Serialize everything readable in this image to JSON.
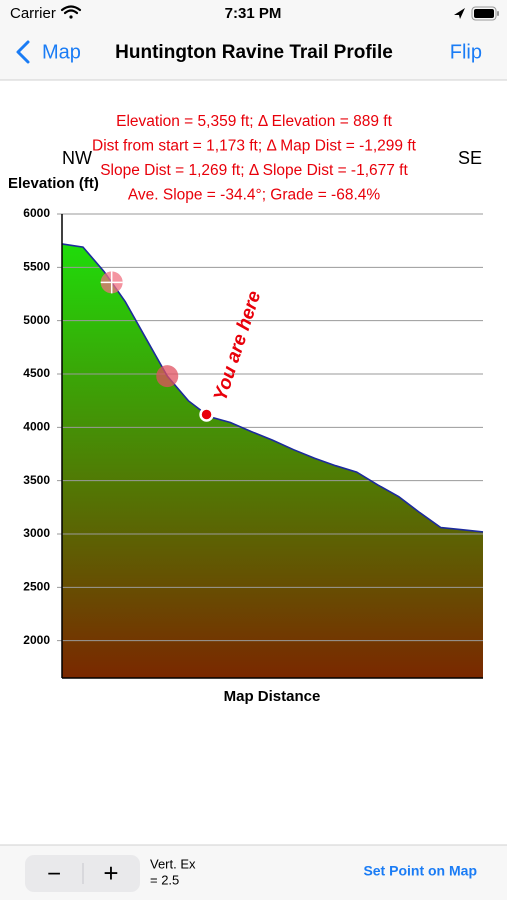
{
  "status_bar": {
    "carrier": "Carrier",
    "time": "7:31 PM"
  },
  "nav_bar": {
    "back": "Map",
    "title": "Huntington Ravine Trail Profile",
    "action": "Flip"
  },
  "chart_data": {
    "type": "area",
    "info_lines": [
      "Elevation = 5,359 ft;   Δ Elevation = 889 ft",
      "Dist from start = 1,173 ft;   Δ Map Dist = -1,299 ft",
      "Slope Dist = 1,269 ft;   Δ Slope Dist = -1,677 ft",
      "Ave. Slope = -34.4°;   Grade = -68.4%"
    ],
    "left_direction": "NW",
    "right_direction": "SE",
    "y_label": "Elevation (ft)",
    "x_label": "Map Distance",
    "categories": [
      null,
      null,
      null,
      null,
      null,
      null,
      null,
      null,
      null,
      null,
      null,
      null,
      null,
      null,
      null,
      null,
      null,
      null,
      null,
      null,
      null
    ],
    "values": [
      5720,
      5690,
      5460,
      5180,
      4830,
      4480,
      4250,
      4100,
      4045,
      3960,
      3880,
      3790,
      3710,
      3640,
      3580,
      3460,
      3350,
      3200,
      3060,
      3040,
      3020
    ],
    "line_color": "#1c2a9c",
    "fill_top_color": "#1fdc0a",
    "fill_bottom_color": "#7a2800",
    "ylim": [
      1650,
      6000
    ],
    "yticks": [
      2000,
      2500,
      3000,
      3500,
      4000,
      4500,
      5000,
      5500,
      6000
    ],
    "grid": true,
    "markers": [
      {
        "value": 5359,
        "color": "#f07080"
      },
      {
        "value": 4480,
        "color": "#e05060"
      },
      {
        "value": 4120,
        "color": "#e8000a",
        "label": "You are here"
      }
    ]
  },
  "toolbar": {
    "minus": "−",
    "plus": "+",
    "vert_ex_label": "Vert. Ex",
    "vert_ex_value": "= 2.5",
    "set_point": "Set Point on Map"
  }
}
